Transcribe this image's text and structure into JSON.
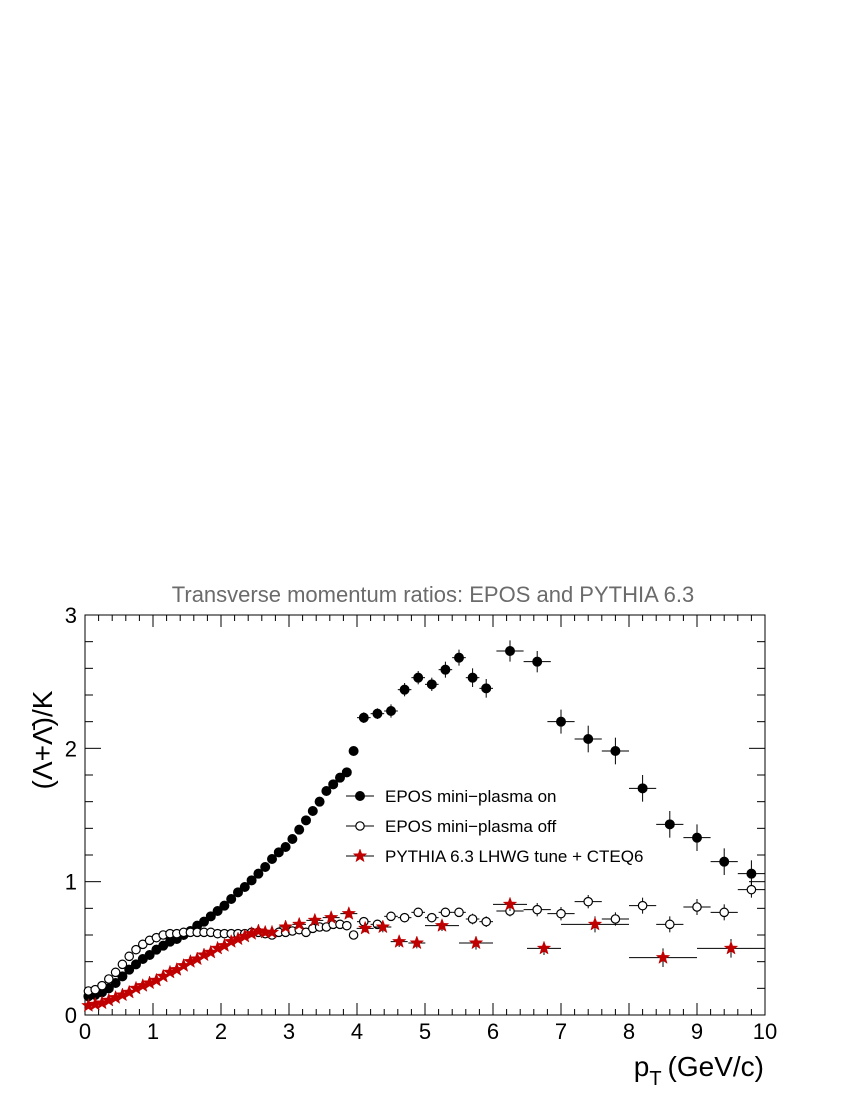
{
  "chart_data": {
    "type": "scatter",
    "title": "Transverse momentum ratios: EPOS and PYTHIA 6.3",
    "xlabel": "p",
    "xlabel_sub": "T",
    "xlabel_unit": "(GeV/c)",
    "ylabel": "(Λ+Λ̄)/K",
    "xlim": [
      0,
      10
    ],
    "ylim": [
      0,
      3
    ],
    "xticks": [
      "0",
      "1",
      "2",
      "3",
      "4",
      "5",
      "6",
      "7",
      "8",
      "9",
      "10"
    ],
    "yticks": [
      "0",
      "1",
      "2",
      "3"
    ],
    "legend_position": "center-right",
    "series": [
      {
        "name": "EPOS mini−plasma on",
        "marker": "filled-circle",
        "color": "#000000",
        "x": [
          0.05,
          0.15,
          0.25,
          0.35,
          0.45,
          0.55,
          0.65,
          0.75,
          0.85,
          0.95,
          1.05,
          1.15,
          1.25,
          1.35,
          1.45,
          1.55,
          1.65,
          1.75,
          1.85,
          1.95,
          2.05,
          2.15,
          2.25,
          2.35,
          2.45,
          2.55,
          2.65,
          2.75,
          2.85,
          2.95,
          3.05,
          3.15,
          3.25,
          3.35,
          3.45,
          3.55,
          3.65,
          3.75,
          3.85,
          3.95,
          4.1,
          4.3,
          4.5,
          4.7,
          4.9,
          5.1,
          5.3,
          5.5,
          5.7,
          5.9,
          6.25,
          6.65,
          7.0,
          7.4,
          7.8,
          8.2,
          8.6,
          9.0,
          9.4,
          9.8
        ],
        "y": [
          0.14,
          0.15,
          0.17,
          0.2,
          0.24,
          0.29,
          0.34,
          0.38,
          0.42,
          0.45,
          0.49,
          0.52,
          0.55,
          0.57,
          0.6,
          0.63,
          0.67,
          0.7,
          0.74,
          0.78,
          0.82,
          0.87,
          0.92,
          0.96,
          1.01,
          1.06,
          1.11,
          1.17,
          1.22,
          1.26,
          1.32,
          1.39,
          1.46,
          1.53,
          1.6,
          1.68,
          1.73,
          1.78,
          1.82,
          1.98,
          2.23,
          2.26,
          2.28,
          2.44,
          2.53,
          2.48,
          2.59,
          2.68,
          2.53,
          2.45,
          2.73,
          2.65,
          2.2,
          2.07,
          1.98,
          1.7,
          1.43,
          1.33,
          1.15,
          1.06
        ],
        "xerr": [
          0,
          0,
          0,
          0,
          0,
          0,
          0,
          0,
          0,
          0,
          0,
          0,
          0,
          0,
          0,
          0,
          0,
          0,
          0,
          0,
          0,
          0,
          0,
          0,
          0,
          0,
          0,
          0,
          0,
          0,
          0,
          0,
          0,
          0,
          0,
          0,
          0,
          0,
          0,
          0,
          0.1,
          0.1,
          0.1,
          0.1,
          0.1,
          0.1,
          0.1,
          0.1,
          0.1,
          0.1,
          0.2,
          0.2,
          0.2,
          0.2,
          0.2,
          0.2,
          0.2,
          0.2,
          0.2,
          0.2
        ],
        "yerr": [
          0,
          0,
          0,
          0,
          0,
          0,
          0,
          0,
          0,
          0,
          0,
          0,
          0,
          0,
          0,
          0,
          0,
          0,
          0,
          0,
          0,
          0,
          0,
          0,
          0,
          0,
          0,
          0,
          0,
          0,
          0,
          0,
          0,
          0,
          0,
          0,
          0,
          0,
          0.03,
          0.03,
          0.04,
          0.04,
          0.05,
          0.05,
          0.05,
          0.05,
          0.06,
          0.06,
          0.07,
          0.07,
          0.08,
          0.08,
          0.09,
          0.1,
          0.1,
          0.1,
          0.1,
          0.1,
          0.1,
          0.1
        ]
      },
      {
        "name": "EPOS mini−plasma off",
        "marker": "open-circle",
        "color": "#000000",
        "x": [
          0.05,
          0.15,
          0.25,
          0.35,
          0.45,
          0.55,
          0.65,
          0.75,
          0.85,
          0.95,
          1.05,
          1.15,
          1.25,
          1.35,
          1.45,
          1.55,
          1.65,
          1.75,
          1.85,
          1.95,
          2.05,
          2.15,
          2.25,
          2.35,
          2.45,
          2.55,
          2.65,
          2.75,
          2.85,
          2.95,
          3.05,
          3.15,
          3.25,
          3.35,
          3.45,
          3.55,
          3.65,
          3.75,
          3.85,
          3.95,
          4.1,
          4.3,
          4.5,
          4.7,
          4.9,
          5.1,
          5.3,
          5.5,
          5.7,
          5.9,
          6.25,
          6.65,
          7.0,
          7.4,
          7.8,
          8.2,
          8.6,
          9.0,
          9.4,
          9.8
        ],
        "y": [
          0.18,
          0.19,
          0.22,
          0.27,
          0.32,
          0.38,
          0.44,
          0.49,
          0.53,
          0.56,
          0.58,
          0.6,
          0.61,
          0.61,
          0.62,
          0.62,
          0.62,
          0.62,
          0.62,
          0.61,
          0.61,
          0.61,
          0.61,
          0.61,
          0.62,
          0.62,
          0.61,
          0.6,
          0.62,
          0.62,
          0.63,
          0.64,
          0.62,
          0.65,
          0.66,
          0.66,
          0.68,
          0.68,
          0.67,
          0.6,
          0.7,
          0.68,
          0.74,
          0.73,
          0.77,
          0.73,
          0.77,
          0.77,
          0.72,
          0.7,
          0.78,
          0.79,
          0.76,
          0.85,
          0.72,
          0.82,
          0.68,
          0.81,
          0.77,
          0.94
        ],
        "xerr": [
          0,
          0,
          0,
          0,
          0,
          0,
          0,
          0,
          0,
          0,
          0,
          0,
          0,
          0,
          0,
          0,
          0,
          0,
          0,
          0,
          0,
          0,
          0,
          0,
          0,
          0,
          0,
          0,
          0,
          0,
          0,
          0,
          0,
          0,
          0,
          0,
          0,
          0,
          0,
          0,
          0.1,
          0.1,
          0.1,
          0.1,
          0.1,
          0.1,
          0.1,
          0.1,
          0.1,
          0.1,
          0.2,
          0.2,
          0.2,
          0.2,
          0.2,
          0.2,
          0.2,
          0.2,
          0.2,
          0.2
        ],
        "yerr": [
          0,
          0,
          0,
          0,
          0,
          0,
          0,
          0,
          0,
          0,
          0,
          0,
          0,
          0,
          0,
          0,
          0,
          0,
          0,
          0,
          0,
          0,
          0,
          0,
          0,
          0,
          0,
          0,
          0,
          0,
          0,
          0,
          0,
          0,
          0,
          0,
          0,
          0,
          0.02,
          0.02,
          0.02,
          0.02,
          0.03,
          0.03,
          0.03,
          0.03,
          0.03,
          0.03,
          0.04,
          0.04,
          0.04,
          0.05,
          0.05,
          0.05,
          0.05,
          0.06,
          0.06,
          0.06,
          0.06,
          0.06
        ]
      },
      {
        "name": "PYTHIA 6.3 LHWG tune + CTEQ6",
        "marker": "star",
        "color": "#c00000",
        "x": [
          0.05,
          0.15,
          0.25,
          0.35,
          0.45,
          0.55,
          0.65,
          0.75,
          0.85,
          0.95,
          1.05,
          1.15,
          1.25,
          1.35,
          1.45,
          1.55,
          1.65,
          1.75,
          1.85,
          1.95,
          2.05,
          2.15,
          2.25,
          2.35,
          2.45,
          2.55,
          2.65,
          2.75,
          2.95,
          3.15,
          3.38,
          3.62,
          3.88,
          4.12,
          4.38,
          4.62,
          4.88,
          5.25,
          5.75,
          6.25,
          6.75,
          7.5,
          8.5,
          9.5
        ],
        "y": [
          0.07,
          0.08,
          0.09,
          0.11,
          0.13,
          0.15,
          0.17,
          0.2,
          0.22,
          0.24,
          0.26,
          0.29,
          0.32,
          0.34,
          0.37,
          0.4,
          0.42,
          0.45,
          0.47,
          0.5,
          0.52,
          0.55,
          0.57,
          0.59,
          0.61,
          0.63,
          0.62,
          0.62,
          0.66,
          0.68,
          0.71,
          0.73,
          0.76,
          0.65,
          0.66,
          0.55,
          0.54,
          0.67,
          0.54,
          0.83,
          0.5,
          0.68,
          0.43,
          0.5
        ],
        "xerr": [
          0,
          0,
          0,
          0,
          0,
          0,
          0,
          0,
          0,
          0,
          0,
          0,
          0,
          0,
          0,
          0,
          0,
          0,
          0,
          0,
          0,
          0,
          0,
          0,
          0,
          0,
          0,
          0,
          0.1,
          0.1,
          0.125,
          0.125,
          0.125,
          0.125,
          0.125,
          0.125,
          0.125,
          0.25,
          0.25,
          0.25,
          0.25,
          0.5,
          0.5,
          0.5
        ],
        "yerr": [
          0,
          0,
          0,
          0,
          0,
          0,
          0,
          0,
          0,
          0,
          0,
          0,
          0,
          0,
          0,
          0,
          0,
          0,
          0,
          0,
          0,
          0,
          0,
          0,
          0,
          0,
          0,
          0,
          0.02,
          0.02,
          0.03,
          0.03,
          0.03,
          0.03,
          0.04,
          0.04,
          0.04,
          0.04,
          0.05,
          0.05,
          0.05,
          0.06,
          0.07,
          0.07
        ]
      }
    ]
  }
}
